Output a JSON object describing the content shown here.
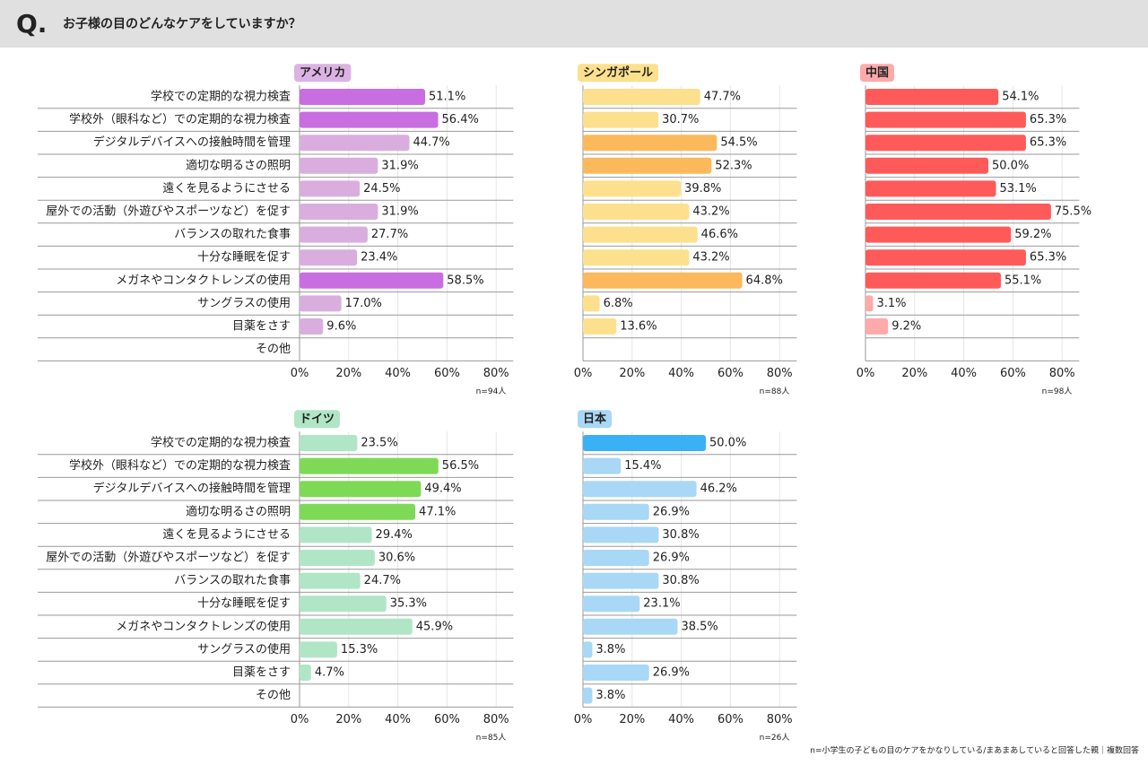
{
  "header": {
    "q": "Q.",
    "title": "お子様の目のどんなケアをしていますか？"
  },
  "footnote": "n=小学生の子どもの目のケアをかなりしている/まあまあしていると回答した親｜複数回答",
  "chart_data": [
    {
      "type": "bar",
      "orientation": "horizontal",
      "title": "アメリカ",
      "title_color": "#dcb2e4",
      "note": "n=94人",
      "categories": [
        "学校での定期的な視力検査",
        "学校外（眼科など）での定期的な視力検査",
        "デジタルデバイスへの接触時間を管理",
        "適切な明るさの照明",
        "遠くを見るようにさせる",
        "屋外での活動（外遊びやスポーツなど）を促す",
        "バランスの取れた食事",
        "十分な睡眠を促す",
        "メガネやコンタクトレンズの使用",
        "サングラスの使用",
        "目薬をさす",
        "その他"
      ],
      "values": [
        51.1,
        56.4,
        44.7,
        31.9,
        24.5,
        31.9,
        27.7,
        23.4,
        58.5,
        17.0,
        9.6,
        null
      ],
      "value_labels": [
        "51.1%",
        "56.4%",
        "44.7%",
        "31.9%",
        "24.5%",
        "31.9%",
        "27.7%",
        "23.4%",
        "58.5%",
        "17.0%",
        "9.6%",
        null
      ],
      "colors": [
        "#c86ee0",
        "#c86ee0",
        "#d9aedf",
        "#d9aedf",
        "#d9aedf",
        "#d9aedf",
        "#d9aedf",
        "#d9aedf",
        "#c86ee0",
        "#d9aedf",
        "#d9aedf",
        "#d9aedf"
      ],
      "xlim": [
        0,
        87
      ],
      "xticks": [
        {
          "value": 0,
          "label": "0%"
        },
        {
          "value": 20,
          "label": "20%"
        },
        {
          "value": 40,
          "label": "40%"
        },
        {
          "value": 60,
          "label": "60%"
        },
        {
          "value": 80,
          "label": "80%"
        }
      ],
      "grid": true
    },
    {
      "type": "bar",
      "orientation": "horizontal",
      "title": "シンガポール",
      "title_color": "#fde08d",
      "note": "n=88人",
      "categories": [
        null,
        null,
        null,
        null,
        null,
        null,
        null,
        null,
        null,
        null,
        null,
        null
      ],
      "values": [
        47.7,
        30.7,
        54.5,
        52.3,
        39.8,
        43.2,
        46.6,
        43.2,
        64.8,
        6.8,
        13.6,
        null
      ],
      "value_labels": [
        "47.7%",
        "30.7%",
        "54.5%",
        "52.3%",
        "39.8%",
        "43.2%",
        "46.6%",
        "43.2%",
        "64.8%",
        "6.8%",
        "13.6%",
        null
      ],
      "colors": [
        "#fde08d",
        "#fde08d",
        "#fbb95c",
        "#fbb95c",
        "#fde08d",
        "#fde08d",
        "#fde08d",
        "#fde08d",
        "#fbb95c",
        "#fde08d",
        "#fde08d",
        "#fde08d"
      ],
      "xlim": [
        0,
        87
      ],
      "xticks": [
        {
          "value": 0,
          "label": "0%"
        },
        {
          "value": 20,
          "label": "20%"
        },
        {
          "value": 40,
          "label": "40%"
        },
        {
          "value": 60,
          "label": "60%"
        },
        {
          "value": 80,
          "label": "80%"
        }
      ],
      "grid": true
    },
    {
      "type": "bar",
      "orientation": "horizontal",
      "title": "中国",
      "title_color": "#ffaaaa",
      "note": "n=98人",
      "categories": [
        null,
        null,
        null,
        null,
        null,
        null,
        null,
        null,
        null,
        null,
        null,
        null
      ],
      "values": [
        54.1,
        65.3,
        65.3,
        50.0,
        53.1,
        75.5,
        59.2,
        65.3,
        55.1,
        3.1,
        9.2,
        null
      ],
      "value_labels": [
        "54.1%",
        "65.3%",
        "65.3%",
        "50.0%",
        "53.1%",
        "75.5%",
        "59.2%",
        "65.3%",
        "55.1%",
        "3.1%",
        "9.2%",
        null
      ],
      "colors": [
        "#ff5a5a",
        "#ff5a5a",
        "#ff5a5a",
        "#ff5a5a",
        "#ff5a5a",
        "#ff5a5a",
        "#ff5a5a",
        "#ff5a5a",
        "#ff5a5a",
        "#ffaaaa",
        "#ffaaaa",
        "#ffaaaa"
      ],
      "xlim": [
        0,
        87
      ],
      "xticks": [
        {
          "value": 0,
          "label": "0%"
        },
        {
          "value": 20,
          "label": "20%"
        },
        {
          "value": 40,
          "label": "40%"
        },
        {
          "value": 60,
          "label": "60%"
        },
        {
          "value": 80,
          "label": "80%"
        }
      ],
      "grid": true
    },
    {
      "type": "bar",
      "orientation": "horizontal",
      "title": "ドイツ",
      "title_color": "#b0e6c6",
      "note": "n=85人",
      "categories": [
        "学校での定期的な視力検査",
        "学校外（眼科など）での定期的な視力検査",
        "デジタルデバイスへの接触時間を管理",
        "適切な明るさの照明",
        "遠くを見るようにさせる",
        "屋外での活動（外遊びやスポーツなど）を促す",
        "バランスの取れた食事",
        "十分な睡眠を促す",
        "メガネやコンタクトレンズの使用",
        "サングラスの使用",
        "目薬をさす",
        "その他"
      ],
      "values": [
        23.5,
        56.5,
        49.4,
        47.1,
        29.4,
        30.6,
        24.7,
        35.3,
        45.9,
        15.3,
        4.7,
        null
      ],
      "value_labels": [
        "23.5%",
        "56.5%",
        "49.4%",
        "47.1%",
        "29.4%",
        "30.6%",
        "24.7%",
        "35.3%",
        "45.9%",
        "15.3%",
        "4.7%",
        null
      ],
      "colors": [
        "#b0e6c6",
        "#7ed957",
        "#7ed957",
        "#7ed957",
        "#b0e6c6",
        "#b0e6c6",
        "#b0e6c6",
        "#b0e6c6",
        "#b0e6c6",
        "#b0e6c6",
        "#b0e6c6",
        "#b0e6c6"
      ],
      "xlim": [
        0,
        87
      ],
      "xticks": [
        {
          "value": 0,
          "label": "0%"
        },
        {
          "value": 20,
          "label": "20%"
        },
        {
          "value": 40,
          "label": "40%"
        },
        {
          "value": 60,
          "label": "60%"
        },
        {
          "value": 80,
          "label": "80%"
        }
      ],
      "grid": true
    },
    {
      "type": "bar",
      "orientation": "horizontal",
      "title": "日本",
      "title_color": "#a8d8f5",
      "note": "n=26人",
      "categories": [
        null,
        null,
        null,
        null,
        null,
        null,
        null,
        null,
        null,
        null,
        null,
        null
      ],
      "values": [
        50.0,
        15.4,
        46.2,
        26.9,
        30.8,
        26.9,
        30.8,
        23.1,
        38.5,
        3.8,
        26.9,
        3.8
      ],
      "value_labels": [
        "50.0%",
        "15.4%",
        "46.2%",
        "26.9%",
        "30.8%",
        "26.9%",
        "30.8%",
        "23.1%",
        "38.5%",
        "3.8%",
        "26.9%",
        "3.8%"
      ],
      "colors": [
        "#3ab0f5",
        "#a8d8f5",
        "#a8d8f5",
        "#a8d8f5",
        "#a8d8f5",
        "#a8d8f5",
        "#a8d8f5",
        "#a8d8f5",
        "#a8d8f5",
        "#a8d8f5",
        "#a8d8f5",
        "#a8d8f5"
      ],
      "xlim": [
        0,
        87
      ],
      "xticks": [
        {
          "value": 0,
          "label": "0%"
        },
        {
          "value": 20,
          "label": "20%"
        },
        {
          "value": 40,
          "label": "40%"
        },
        {
          "value": 60,
          "label": "60%"
        },
        {
          "value": 80,
          "label": "80%"
        }
      ],
      "grid": true
    }
  ]
}
